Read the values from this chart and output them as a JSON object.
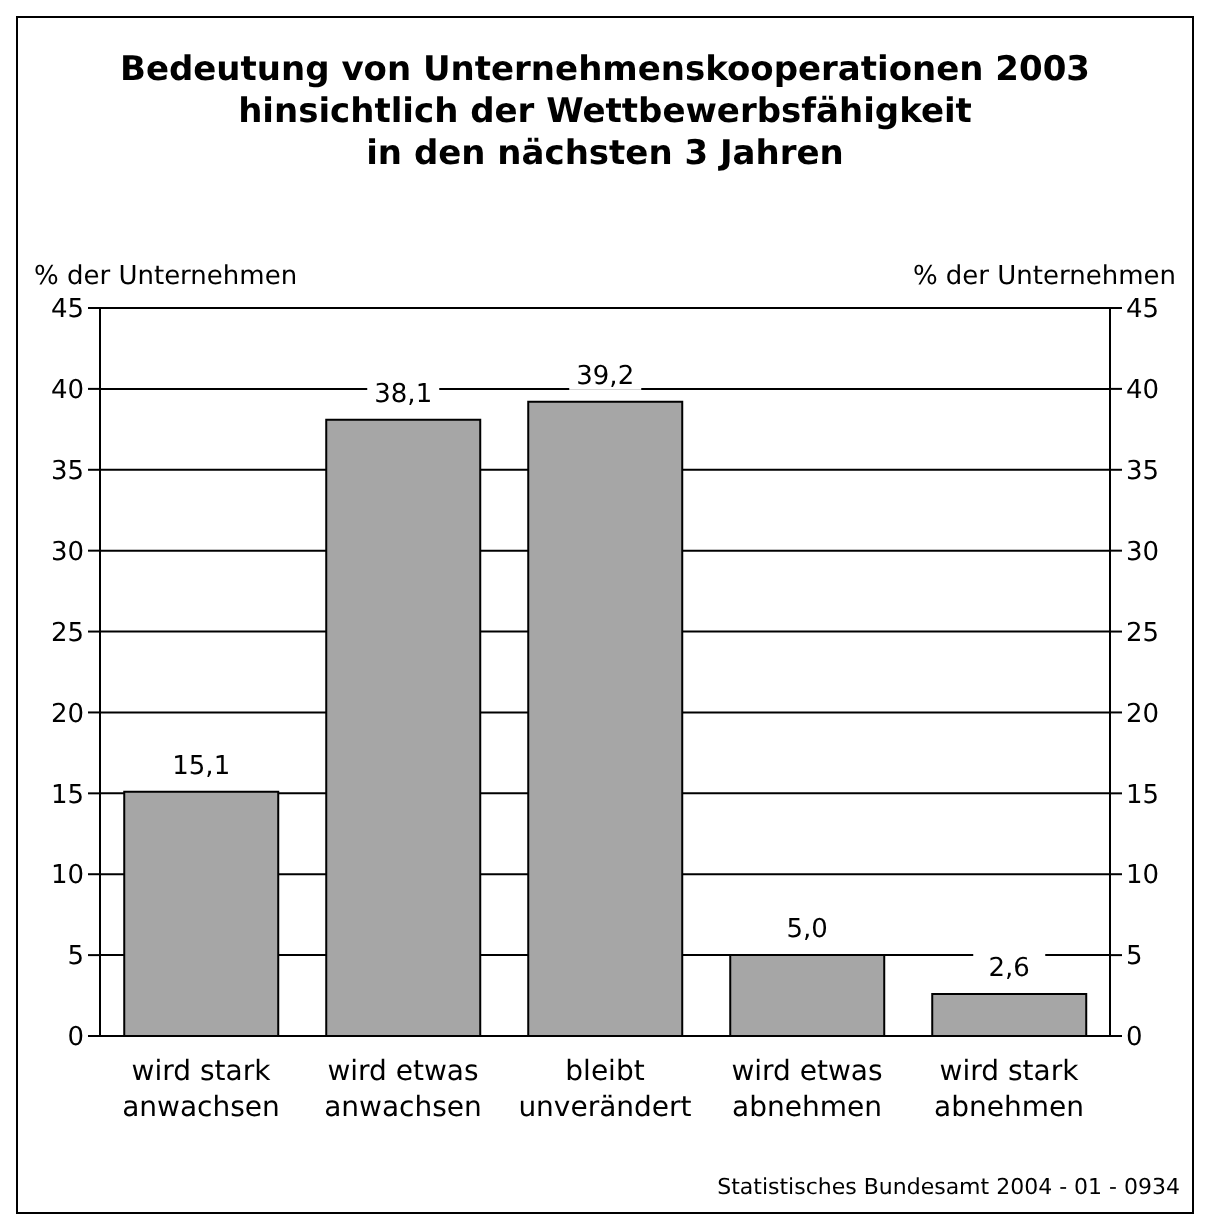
{
  "chart_data": {
    "type": "bar",
    "title": "Bedeutung von Unternehmenskooperationen 2003\nhinsichtlich der Wettbewerbsfähigkeit\nin den nächsten 3 Jahren",
    "ylabel": "% der Unternehmen",
    "y2label": "% der Unternehmen",
    "categories": [
      "wird stark anwachsen",
      "wird etwas anwachsen",
      "bleibt unverändert",
      "wird etwas abnehmen",
      "wird stark abnehmen"
    ],
    "values": [
      15.1,
      38.1,
      39.2,
      5.0,
      2.6
    ],
    "value_labels": [
      "15,1",
      "38,1",
      "39,2",
      "5,0",
      "2,6"
    ],
    "color": "#a6a6a6",
    "ylim": [
      0,
      45
    ],
    "yticks": [
      0,
      5,
      10,
      15,
      20,
      25,
      30,
      35,
      40,
      45
    ],
    "y2lim": [
      0,
      45
    ],
    "y2ticks": [
      0,
      5,
      10,
      15,
      20,
      25,
      30,
      35,
      40,
      45
    ],
    "grid": "y",
    "annotations": [
      "Statistisches Bundesamt 2004 - 01 - 0934"
    ]
  }
}
